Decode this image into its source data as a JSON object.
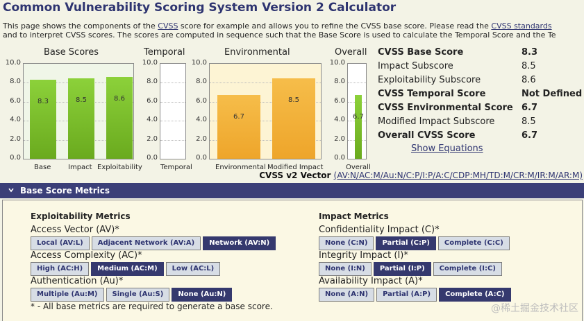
{
  "header": {
    "title": "Common Vulnerability Scoring System Version 2 Calculator",
    "intro_line1_a": "This page shows the components of the ",
    "intro_link1": "CVSS",
    "intro_line1_b": " score for example and allows you to refine the CVSS base score. Please read the ",
    "intro_link2": "CVSS standards",
    "intro_line2": "and to interpret CVSS scores. The scores are computed in sequence such that the Base Score is used to calculate the Temporal Score and the Te"
  },
  "charts": {
    "titles": {
      "base": "Base Scores",
      "temporal": "Temporal",
      "environmental": "Environmental",
      "overall": "Overall"
    },
    "yticks": [
      "10.0",
      "8.0",
      "6.0",
      "4.0",
      "2.0",
      "0.0"
    ]
  },
  "chart_data": {
    "type": "bar",
    "ylim": [
      0,
      10
    ],
    "groups": [
      {
        "name": "Base Scores",
        "categories": [
          "Base",
          "Impact",
          "Exploitability"
        ],
        "values": [
          8.3,
          8.5,
          8.6
        ],
        "labels": [
          "8.3",
          "8.5",
          "8.6"
        ],
        "color": "#7cc12c"
      },
      {
        "name": "Temporal",
        "categories": [
          "Temporal"
        ],
        "values": [],
        "labels": []
      },
      {
        "name": "Environmental",
        "categories": [
          "Environmental",
          "Modified Impact"
        ],
        "values": [
          6.7,
          8.5
        ],
        "labels": [
          "6.7",
          "8.5"
        ],
        "color": "#f2b03a"
      },
      {
        "name": "Overall",
        "categories": [
          "Overall"
        ],
        "values": [
          6.7
        ],
        "labels": [
          "6.7"
        ],
        "color": "#7cc12c"
      }
    ]
  },
  "scores": [
    {
      "label": "CVSS Base Score",
      "value": "8.3",
      "bold": true
    },
    {
      "label": "Impact Subscore",
      "value": "8.5",
      "bold": false
    },
    {
      "label": "Exploitability Subscore",
      "value": "8.6",
      "bold": false
    },
    {
      "label": "CVSS Temporal Score",
      "value": "Not Defined",
      "bold": true
    },
    {
      "label": "CVSS Environmental Score",
      "value": "6.7",
      "bold": true
    },
    {
      "label": "Modified Impact Subscore",
      "value": "8.5",
      "bold": false
    },
    {
      "label": "Overall CVSS Score",
      "value": "6.7",
      "bold": true
    }
  ],
  "show_equations": "Show Equations",
  "vector": {
    "label": "CVSS v2 Vector ",
    "value": "(AV:N/AC:M/Au:N/C:P/I:P/A:C/CDP:MH/TD:M/CR:M/IR:M/AR:M)"
  },
  "section": {
    "title": "Base Score Metrics"
  },
  "exploitability": {
    "heading": "Exploitability Metrics",
    "metrics": [
      {
        "label": "Access Vector (AV)*",
        "options": [
          "Local (AV:L)",
          "Adjacent Network (AV:A)",
          "Network (AV:N)"
        ],
        "selected": 2
      },
      {
        "label": "Access Complexity (AC)*",
        "options": [
          "High (AC:H)",
          "Medium (AC:M)",
          "Low (AC:L)"
        ],
        "selected": 1
      },
      {
        "label": "Authentication (Au)*",
        "options": [
          "Multiple (Au:M)",
          "Single (Au:S)",
          "None (Au:N)"
        ],
        "selected": 2
      }
    ]
  },
  "impact": {
    "heading": "Impact Metrics",
    "metrics": [
      {
        "label": "Confidentiality Impact (C)*",
        "options": [
          "None (C:N)",
          "Partial (C:P)",
          "Complete (C:C)"
        ],
        "selected": 1
      },
      {
        "label": "Integrity Impact (I)*",
        "options": [
          "None (I:N)",
          "Partial (I:P)",
          "Complete (I:C)"
        ],
        "selected": 1
      },
      {
        "label": "Availability Impact (A)*",
        "options": [
          "None (A:N)",
          "Partial (A:P)",
          "Complete (A:C)"
        ],
        "selected": 2
      }
    ]
  },
  "note": "* - All base metrics are required to generate a base score.",
  "watermark": "@稀土掘金技术社区"
}
